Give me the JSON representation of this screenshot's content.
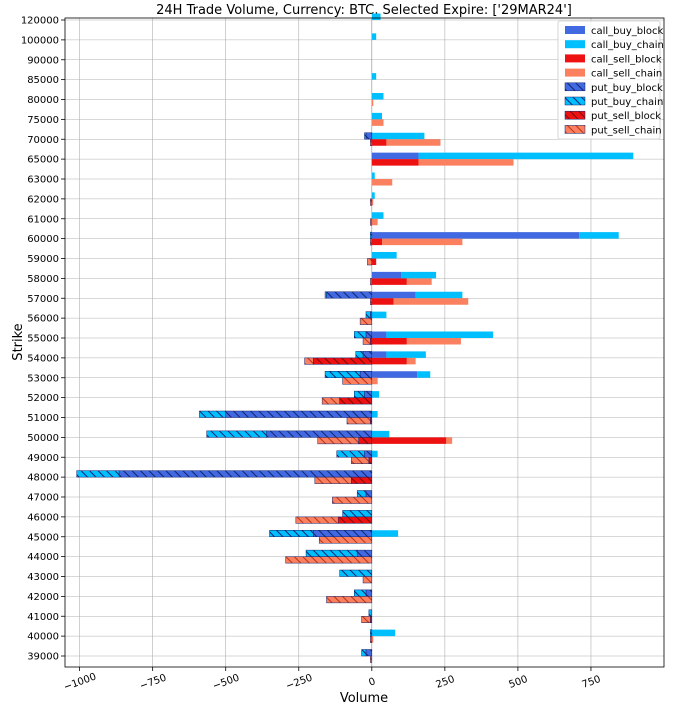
{
  "chart_data": {
    "type": "bar",
    "orientation": "horizontal",
    "title": "24H Trade Volume, Currency: BTC, Selected Expire: ['29MAR24']",
    "xlabel": "Volume",
    "ylabel": "Strike",
    "xlim": [
      -1050,
      1000
    ],
    "x_ticks": [
      -1000,
      -750,
      -500,
      -250,
      0,
      250,
      500,
      750
    ],
    "x_tick_labels": [
      "−1000",
      "−750",
      "−500",
      "−250",
      "0",
      "250",
      "500",
      "750"
    ],
    "grid": true,
    "legend_position": "top-right",
    "categories": [
      "39000",
      "40000",
      "41000",
      "42000",
      "43000",
      "44000",
      "45000",
      "46000",
      "47000",
      "48000",
      "49000",
      "50000",
      "51000",
      "52000",
      "53000",
      "54000",
      "55000",
      "56000",
      "57000",
      "58000",
      "59000",
      "60000",
      "61000",
      "62000",
      "63000",
      "65000",
      "70000",
      "75000",
      "80000",
      "85000",
      "90000",
      "100000",
      "120000"
    ],
    "series": [
      {
        "name": "call_buy_block",
        "color": "#4169e1",
        "hatch": false,
        "stack": "buy",
        "values": [
          0,
          0,
          0,
          0,
          0,
          0,
          0,
          0,
          0,
          0,
          0,
          0,
          0,
          0,
          155,
          50,
          50,
          0,
          150,
          100,
          0,
          710,
          0,
          0,
          0,
          160,
          0,
          0,
          0,
          0,
          0,
          0,
          0
        ]
      },
      {
        "name": "call_buy_chain",
        "color": "#00bfff",
        "hatch": false,
        "stack": "buy",
        "values": [
          0,
          80,
          0,
          0,
          0,
          0,
          90,
          0,
          0,
          0,
          20,
          60,
          20,
          25,
          45,
          135,
          365,
          50,
          160,
          120,
          85,
          135,
          40,
          10,
          10,
          735,
          180,
          35,
          40,
          15,
          0,
          15,
          30
        ]
      },
      {
        "name": "call_sell_block",
        "color": "#ee1111",
        "hatch": false,
        "stack": "sell",
        "values": [
          0,
          0,
          0,
          0,
          0,
          0,
          0,
          0,
          0,
          0,
          0,
          255,
          0,
          0,
          0,
          120,
          120,
          0,
          75,
          120,
          15,
          35,
          0,
          0,
          0,
          160,
          50,
          0,
          0,
          0,
          0,
          0,
          0
        ]
      },
      {
        "name": "call_sell_chain",
        "color": "#fa8060",
        "hatch": false,
        "stack": "sell",
        "values": [
          0,
          5,
          0,
          0,
          0,
          0,
          0,
          0,
          0,
          0,
          0,
          20,
          0,
          0,
          20,
          30,
          185,
          0,
          255,
          85,
          0,
          275,
          20,
          5,
          70,
          325,
          185,
          40,
          5,
          0,
          0,
          0,
          0
        ]
      },
      {
        "name": "put_buy_block",
        "color": "#4169e1",
        "hatch": true,
        "stack": "buy",
        "values": [
          -20,
          0,
          0,
          -20,
          0,
          -50,
          -200,
          0,
          -20,
          -865,
          -25,
          -360,
          -500,
          -25,
          -40,
          -30,
          -20,
          -5,
          -155,
          0,
          0,
          0,
          0,
          0,
          0,
          0,
          -20,
          0,
          0,
          0,
          0,
          0,
          0
        ]
      },
      {
        "name": "put_buy_chain",
        "color": "#00bfff",
        "hatch": true,
        "stack": "buy",
        "values": [
          -15,
          -5,
          -10,
          -40,
          -110,
          -175,
          -150,
          -100,
          -30,
          -145,
          -95,
          -205,
          -90,
          -35,
          -120,
          -25,
          -40,
          -15,
          -5,
          0,
          0,
          -5,
          0,
          0,
          0,
          0,
          -5,
          0,
          0,
          0,
          0,
          0,
          0
        ]
      },
      {
        "name": "put_sell_block",
        "color": "#ee1111",
        "hatch": true,
        "stack": "sell",
        "values": [
          0,
          0,
          -5,
          0,
          0,
          0,
          0,
          -115,
          0,
          -70,
          -10,
          -45,
          -5,
          -110,
          0,
          -200,
          -5,
          0,
          0,
          0,
          0,
          0,
          0,
          0,
          0,
          0,
          0,
          0,
          0,
          0,
          0,
          0,
          0
        ]
      },
      {
        "name": "put_sell_chain",
        "color": "#fa8060",
        "hatch": true,
        "stack": "sell",
        "values": [
          -5,
          -5,
          -30,
          -155,
          -30,
          -295,
          -180,
          -145,
          -135,
          -125,
          -60,
          -140,
          -80,
          -60,
          -100,
          -30,
          -25,
          -40,
          -5,
          -5,
          -15,
          -5,
          -5,
          -5,
          0,
          0,
          -5,
          0,
          0,
          0,
          0,
          0,
          0
        ]
      }
    ]
  }
}
